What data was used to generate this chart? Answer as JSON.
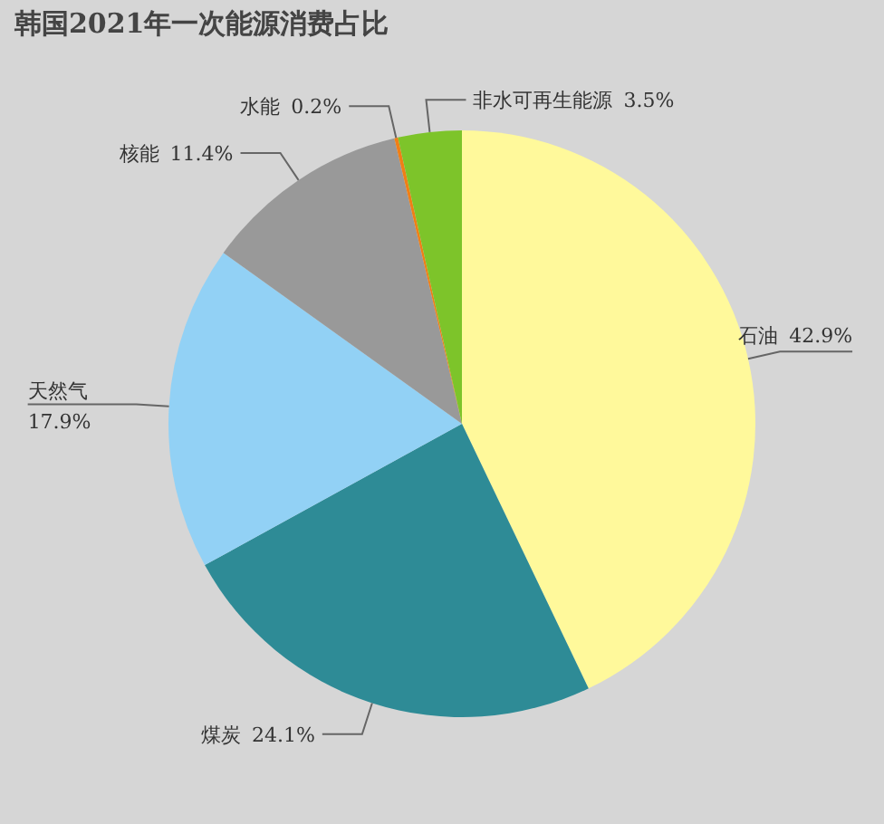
{
  "chart_data": {
    "type": "pie",
    "title": "韩国2021年一次能源消费占比",
    "categories": [
      "石油",
      "煤炭",
      "天然气",
      "核能",
      "水能",
      "非水可再生能源"
    ],
    "values": [
      42.9,
      24.1,
      17.9,
      11.4,
      0.2,
      3.5
    ],
    "colors": [
      "#fff99b",
      "#2e8b96",
      "#92d1f5",
      "#999999",
      "#f07f16",
      "#7dc42a"
    ],
    "value_labels": [
      "42.9%",
      "24.1%",
      "17.9%",
      "11.4%",
      "0.2%",
      "3.5%"
    ],
    "legend": false
  }
}
